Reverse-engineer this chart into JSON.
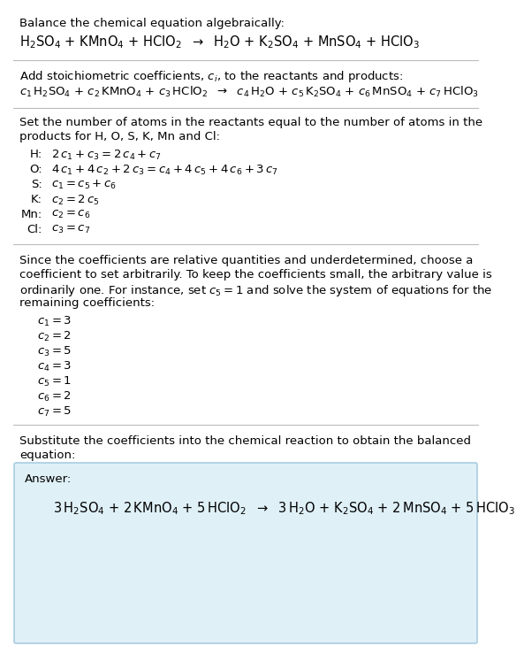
{
  "title_line": "Balance the chemical equation algebraically:",
  "section2_header": "Add stoichiometric coefficients, $c_i$, to the reactants and products:",
  "section3_header1": "Set the number of atoms in the reactants equal to the number of atoms in the",
  "section3_header2": "products for H, O, S, K, Mn and Cl:",
  "section4_text1": "Since the coefficients are relative quantities and underdetermined, choose a",
  "section4_text2": "coefficient to set arbitrarily. To keep the coefficients small, the arbitrary value is",
  "section4_text3": "ordinarily one. For instance, set $c_5 = 1$ and solve the system of equations for the",
  "section4_text4": "remaining coefficients:",
  "section5_text1": "Substitute the coefficients into the chemical reaction to obtain the balanced",
  "section5_text2": "equation:",
  "answer_label": "Answer:",
  "bg_color": "#ffffff",
  "answer_box_facecolor": "#dff0f7",
  "answer_box_edgecolor": "#aacce0",
  "text_color": "#000000",
  "font_size": 9.5,
  "eq_font_size": 10.5,
  "line_color": "#bbbbbb"
}
